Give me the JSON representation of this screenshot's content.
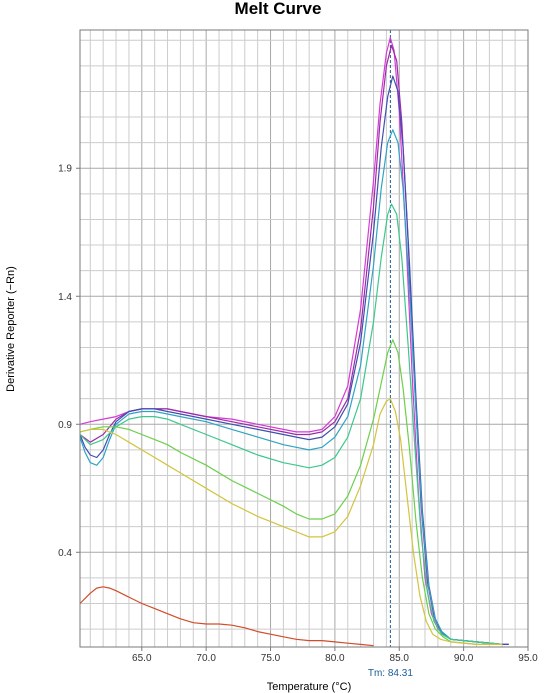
{
  "chart_data": {
    "type": "line",
    "title": "Melt Curve",
    "xlabel": "Temperature (°C)",
    "ylabel": "Derivative Reporter (−Rn)",
    "xlim": [
      60.2,
      95.0
    ],
    "ylim": [
      0.03,
      2.44
    ],
    "x_ticks": [
      65.0,
      70.0,
      75.0,
      80.0,
      85.0,
      90.0,
      95.0
    ],
    "x_tick_labels": [
      "65.0",
      "70.0",
      "75.0",
      "80.0",
      "85.0",
      "90.0",
      "95.0"
    ],
    "y_ticks": [
      0.4,
      0.9,
      1.4,
      1.9
    ],
    "y_tick_labels": [
      "0.4",
      "0.9",
      "1.4",
      "1.9"
    ],
    "grid": true,
    "marker": {
      "x": 84.31,
      "label": "Tm: 84.31",
      "color": "#1a5c99"
    },
    "series": [
      {
        "color": "#d63ad6",
        "points": [
          [
            60.2,
            0.9
          ],
          [
            61.0,
            0.91
          ],
          [
            62.0,
            0.92
          ],
          [
            63.0,
            0.93
          ],
          [
            64.0,
            0.95
          ],
          [
            65.0,
            0.96
          ],
          [
            66.0,
            0.96
          ],
          [
            67.0,
            0.96
          ],
          [
            68.0,
            0.95
          ],
          [
            70.0,
            0.93
          ],
          [
            72.0,
            0.92
          ],
          [
            74.0,
            0.9
          ],
          [
            76.0,
            0.88
          ],
          [
            77.0,
            0.87
          ],
          [
            78.0,
            0.87
          ],
          [
            79.0,
            0.88
          ],
          [
            80.0,
            0.93
          ],
          [
            81.0,
            1.05
          ],
          [
            82.0,
            1.35
          ],
          [
            83.0,
            1.85
          ],
          [
            83.5,
            2.15
          ],
          [
            84.0,
            2.35
          ],
          [
            84.3,
            2.41
          ],
          [
            84.6,
            2.36
          ],
          [
            85.0,
            2.12
          ],
          [
            85.5,
            1.65
          ],
          [
            86.0,
            1.1
          ],
          [
            86.5,
            0.62
          ],
          [
            87.0,
            0.3
          ],
          [
            87.5,
            0.16
          ],
          [
            88.0,
            0.1
          ],
          [
            89.0,
            0.06
          ],
          [
            91.0,
            0.05
          ],
          [
            93.0,
            0.04
          ],
          [
            93.5,
            0.04
          ]
        ]
      },
      {
        "color": "#9b2ca8",
        "points": [
          [
            60.2,
            0.86
          ],
          [
            61.0,
            0.83
          ],
          [
            62.0,
            0.86
          ],
          [
            63.0,
            0.92
          ],
          [
            64.0,
            0.95
          ],
          [
            65.0,
            0.96
          ],
          [
            67.0,
            0.96
          ],
          [
            68.0,
            0.95
          ],
          [
            70.0,
            0.93
          ],
          [
            72.0,
            0.91
          ],
          [
            74.0,
            0.89
          ],
          [
            76.0,
            0.87
          ],
          [
            77.0,
            0.86
          ],
          [
            78.0,
            0.86
          ],
          [
            79.0,
            0.87
          ],
          [
            80.0,
            0.91
          ],
          [
            81.0,
            1.0
          ],
          [
            82.0,
            1.27
          ],
          [
            83.0,
            1.75
          ],
          [
            83.5,
            2.08
          ],
          [
            84.0,
            2.3
          ],
          [
            84.4,
            2.38
          ],
          [
            84.8,
            2.32
          ],
          [
            85.2,
            2.08
          ],
          [
            85.7,
            1.6
          ],
          [
            86.2,
            1.05
          ],
          [
            86.7,
            0.58
          ],
          [
            87.2,
            0.28
          ],
          [
            87.7,
            0.15
          ],
          [
            88.2,
            0.09
          ],
          [
            89.0,
            0.06
          ],
          [
            91.0,
            0.05
          ],
          [
            93.0,
            0.04
          ],
          [
            93.5,
            0.04
          ]
        ]
      },
      {
        "color": "#3f4fb0",
        "points": [
          [
            60.2,
            0.86
          ],
          [
            60.6,
            0.81
          ],
          [
            61.0,
            0.78
          ],
          [
            61.5,
            0.77
          ],
          [
            62.0,
            0.8
          ],
          [
            62.5,
            0.86
          ],
          [
            63.0,
            0.91
          ],
          [
            64.0,
            0.95
          ],
          [
            65.0,
            0.96
          ],
          [
            66.0,
            0.96
          ],
          [
            67.0,
            0.95
          ],
          [
            68.0,
            0.94
          ],
          [
            70.0,
            0.92
          ],
          [
            72.0,
            0.9
          ],
          [
            74.0,
            0.88
          ],
          [
            76.0,
            0.86
          ],
          [
            77.0,
            0.85
          ],
          [
            78.0,
            0.84
          ],
          [
            79.0,
            0.85
          ],
          [
            80.0,
            0.89
          ],
          [
            81.0,
            0.98
          ],
          [
            82.0,
            1.22
          ],
          [
            83.0,
            1.65
          ],
          [
            83.6,
            1.98
          ],
          [
            84.1,
            2.18
          ],
          [
            84.5,
            2.26
          ],
          [
            84.9,
            2.2
          ],
          [
            85.3,
            1.98
          ],
          [
            85.8,
            1.52
          ],
          [
            86.3,
            1.0
          ],
          [
            86.8,
            0.56
          ],
          [
            87.3,
            0.27
          ],
          [
            87.8,
            0.14
          ],
          [
            88.3,
            0.09
          ],
          [
            89.0,
            0.06
          ],
          [
            91.0,
            0.05
          ],
          [
            93.0,
            0.04
          ],
          [
            93.5,
            0.04
          ]
        ]
      },
      {
        "color": "#2fa3c4",
        "points": [
          [
            60.2,
            0.85
          ],
          [
            60.6,
            0.79
          ],
          [
            61.0,
            0.75
          ],
          [
            61.5,
            0.74
          ],
          [
            62.0,
            0.77
          ],
          [
            62.5,
            0.84
          ],
          [
            63.0,
            0.9
          ],
          [
            64.0,
            0.94
          ],
          [
            65.0,
            0.95
          ],
          [
            66.0,
            0.95
          ],
          [
            67.0,
            0.94
          ],
          [
            68.0,
            0.93
          ],
          [
            70.0,
            0.91
          ],
          [
            72.0,
            0.88
          ],
          [
            74.0,
            0.85
          ],
          [
            76.0,
            0.82
          ],
          [
            77.0,
            0.81
          ],
          [
            78.0,
            0.8
          ],
          [
            79.0,
            0.81
          ],
          [
            80.0,
            0.85
          ],
          [
            81.0,
            0.93
          ],
          [
            82.0,
            1.13
          ],
          [
            83.0,
            1.52
          ],
          [
            83.6,
            1.82
          ],
          [
            84.1,
            2.0
          ],
          [
            84.5,
            2.05
          ],
          [
            84.9,
            2.0
          ],
          [
            85.3,
            1.82
          ],
          [
            85.8,
            1.42
          ],
          [
            86.3,
            0.95
          ],
          [
            86.8,
            0.53
          ],
          [
            87.3,
            0.26
          ],
          [
            87.8,
            0.14
          ],
          [
            88.3,
            0.09
          ],
          [
            89.0,
            0.06
          ],
          [
            91.0,
            0.05
          ],
          [
            93.0,
            0.04
          ]
        ]
      },
      {
        "color": "#3cc88c",
        "points": [
          [
            60.2,
            0.86
          ],
          [
            61.0,
            0.82
          ],
          [
            62.0,
            0.84
          ],
          [
            63.0,
            0.89
          ],
          [
            64.0,
            0.92
          ],
          [
            65.0,
            0.93
          ],
          [
            66.0,
            0.93
          ],
          [
            67.0,
            0.92
          ],
          [
            68.0,
            0.9
          ],
          [
            70.0,
            0.86
          ],
          [
            72.0,
            0.82
          ],
          [
            74.0,
            0.78
          ],
          [
            76.0,
            0.75
          ],
          [
            77.0,
            0.74
          ],
          [
            78.0,
            0.73
          ],
          [
            79.0,
            0.74
          ],
          [
            80.0,
            0.77
          ],
          [
            81.0,
            0.85
          ],
          [
            82.0,
            1.0
          ],
          [
            83.0,
            1.3
          ],
          [
            83.6,
            1.55
          ],
          [
            84.1,
            1.72
          ],
          [
            84.4,
            1.76
          ],
          [
            84.8,
            1.72
          ],
          [
            85.2,
            1.55
          ],
          [
            85.7,
            1.2
          ],
          [
            86.2,
            0.82
          ],
          [
            86.7,
            0.47
          ],
          [
            87.2,
            0.24
          ],
          [
            87.7,
            0.13
          ],
          [
            88.3,
            0.08
          ],
          [
            89.0,
            0.06
          ],
          [
            91.0,
            0.05
          ],
          [
            93.0,
            0.04
          ]
        ]
      },
      {
        "color": "#6ccf4a",
        "points": [
          [
            60.2,
            0.87
          ],
          [
            61.0,
            0.88
          ],
          [
            62.0,
            0.89
          ],
          [
            63.0,
            0.89
          ],
          [
            64.0,
            0.88
          ],
          [
            65.0,
            0.86
          ],
          [
            66.0,
            0.84
          ],
          [
            67.0,
            0.82
          ],
          [
            68.0,
            0.79
          ],
          [
            70.0,
            0.74
          ],
          [
            72.0,
            0.68
          ],
          [
            74.0,
            0.63
          ],
          [
            76.0,
            0.58
          ],
          [
            77.0,
            0.55
          ],
          [
            78.0,
            0.53
          ],
          [
            79.0,
            0.53
          ],
          [
            80.0,
            0.55
          ],
          [
            81.0,
            0.62
          ],
          [
            82.0,
            0.74
          ],
          [
            83.0,
            0.92
          ],
          [
            83.6,
            1.06
          ],
          [
            84.1,
            1.18
          ],
          [
            84.5,
            1.23
          ],
          [
            84.9,
            1.18
          ],
          [
            85.3,
            1.04
          ],
          [
            85.8,
            0.8
          ],
          [
            86.3,
            0.52
          ],
          [
            86.8,
            0.3
          ],
          [
            87.3,
            0.16
          ],
          [
            87.8,
            0.1
          ],
          [
            88.4,
            0.07
          ],
          [
            89.0,
            0.05
          ],
          [
            91.0,
            0.04
          ],
          [
            93.0,
            0.04
          ]
        ]
      },
      {
        "color": "#d3c43c",
        "points": [
          [
            60.2,
            0.87
          ],
          [
            61.0,
            0.88
          ],
          [
            62.0,
            0.88
          ],
          [
            63.0,
            0.86
          ],
          [
            64.0,
            0.83
          ],
          [
            65.0,
            0.8
          ],
          [
            66.0,
            0.77
          ],
          [
            67.0,
            0.74
          ],
          [
            68.0,
            0.71
          ],
          [
            70.0,
            0.65
          ],
          [
            72.0,
            0.59
          ],
          [
            74.0,
            0.54
          ],
          [
            76.0,
            0.5
          ],
          [
            77.0,
            0.48
          ],
          [
            78.0,
            0.46
          ],
          [
            79.0,
            0.46
          ],
          [
            80.0,
            0.48
          ],
          [
            81.0,
            0.54
          ],
          [
            82.0,
            0.66
          ],
          [
            83.0,
            0.82
          ],
          [
            83.5,
            0.94
          ],
          [
            84.0,
            0.99
          ],
          [
            84.3,
            1.0
          ],
          [
            84.7,
            0.95
          ],
          [
            85.1,
            0.84
          ],
          [
            85.6,
            0.62
          ],
          [
            86.1,
            0.4
          ],
          [
            86.6,
            0.23
          ],
          [
            87.1,
            0.13
          ],
          [
            87.6,
            0.08
          ],
          [
            88.2,
            0.06
          ],
          [
            89.0,
            0.05
          ],
          [
            91.0,
            0.04
          ],
          [
            93.0,
            0.04
          ]
        ]
      },
      {
        "color": "#d24c2a",
        "points": [
          [
            60.2,
            0.2
          ],
          [
            61.0,
            0.24
          ],
          [
            61.5,
            0.26
          ],
          [
            62.0,
            0.265
          ],
          [
            62.5,
            0.26
          ],
          [
            63.0,
            0.25
          ],
          [
            64.0,
            0.225
          ],
          [
            65.0,
            0.2
          ],
          [
            66.0,
            0.18
          ],
          [
            67.0,
            0.16
          ],
          [
            68.0,
            0.14
          ],
          [
            69.0,
            0.125
          ],
          [
            70.0,
            0.12
          ],
          [
            71.0,
            0.12
          ],
          [
            72.0,
            0.115
          ],
          [
            73.0,
            0.105
          ],
          [
            74.0,
            0.09
          ],
          [
            75.0,
            0.08
          ],
          [
            76.0,
            0.07
          ],
          [
            77.0,
            0.06
          ],
          [
            78.0,
            0.055
          ],
          [
            79.0,
            0.055
          ],
          [
            80.0,
            0.05
          ],
          [
            81.0,
            0.045
          ],
          [
            82.0,
            0.04
          ],
          [
            83.0,
            0.035
          ]
        ]
      }
    ]
  }
}
